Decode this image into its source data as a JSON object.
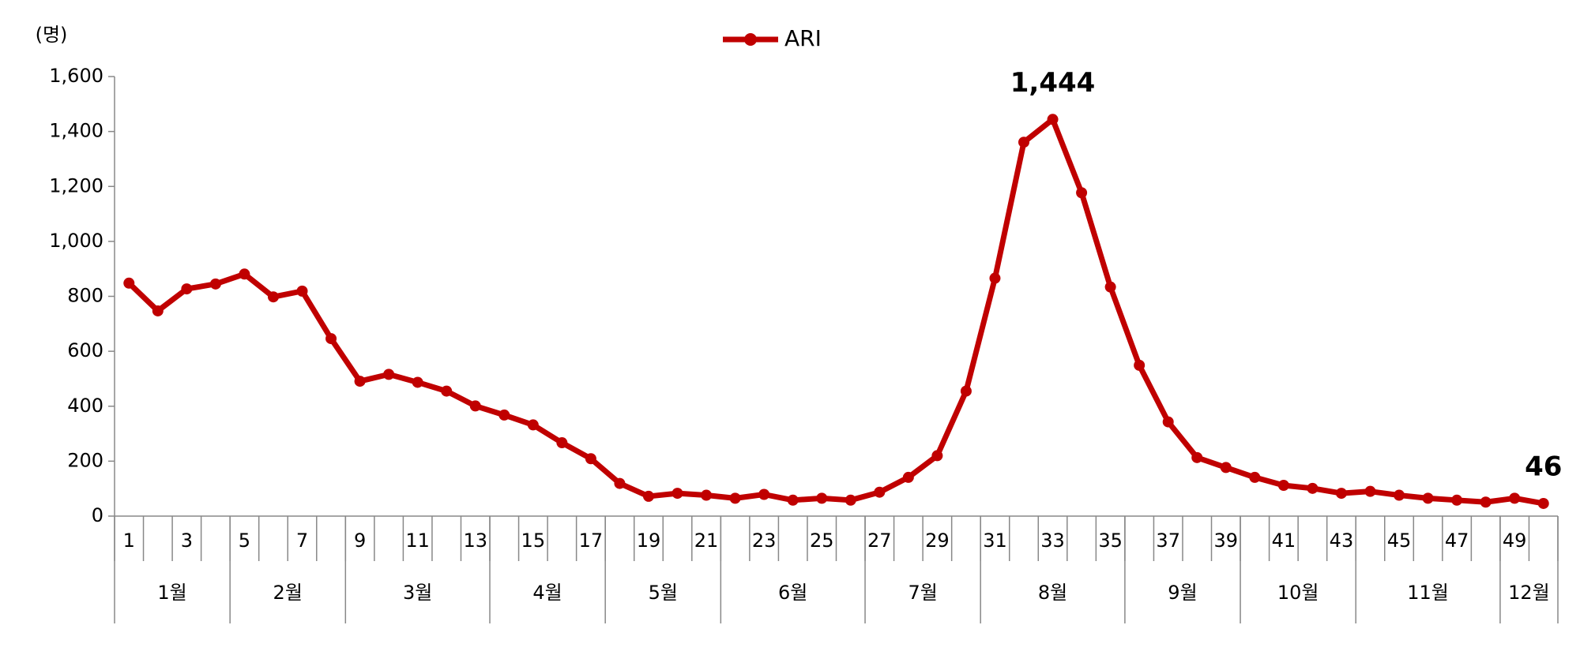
{
  "chart_data": {
    "type": "line",
    "y_label": "(명)",
    "categories": [
      1,
      null,
      3,
      null,
      5,
      null,
      7,
      null,
      9,
      null,
      11,
      null,
      13,
      null,
      15,
      null,
      17,
      null,
      19,
      null,
      21,
      null,
      23,
      null,
      25,
      null,
      27,
      null,
      29,
      null,
      31,
      null,
      33,
      null,
      35,
      null,
      37,
      null,
      39,
      null,
      41,
      null,
      43,
      null,
      45,
      null,
      47,
      null,
      49,
      null
    ],
    "month_groups": [
      {
        "label": "1월",
        "span": 4
      },
      {
        "label": "2월",
        "span": 4
      },
      {
        "label": "3월",
        "span": 5
      },
      {
        "label": "4월",
        "span": 4
      },
      {
        "label": "5월",
        "span": 4
      },
      {
        "label": "6월",
        "span": 5
      },
      {
        "label": "7월",
        "span": 4
      },
      {
        "label": "8월",
        "span": 5
      },
      {
        "label": "9월",
        "span": 4
      },
      {
        "label": "10월",
        "span": 4
      },
      {
        "label": "11월",
        "span": 5
      },
      {
        "label": "12월",
        "span": 2
      }
    ],
    "series": [
      {
        "name": "ARI",
        "color": "#c00000",
        "values": [
          848,
          747,
          827,
          845,
          881,
          798,
          819,
          646,
          491,
          516,
          487,
          455,
          401,
          368,
          332,
          267,
          209,
          119,
          72,
          83,
          76,
          65,
          79,
          58,
          65,
          58,
          87,
          141,
          220,
          455,
          866,
          1361,
          1444,
          1177,
          834,
          549,
          343,
          213,
          177,
          141,
          112,
          101,
          83,
          90,
          76,
          65,
          58,
          51,
          65,
          46
        ],
        "value_labels": [
          null,
          null,
          null,
          null,
          null,
          null,
          null,
          null,
          null,
          null,
          null,
          null,
          null,
          null,
          null,
          null,
          null,
          null,
          null,
          null,
          null,
          null,
          null,
          null,
          null,
          null,
          null,
          null,
          null,
          null,
          null,
          null,
          "1,444",
          null,
          null,
          null,
          null,
          null,
          null,
          null,
          null,
          null,
          null,
          null,
          null,
          null,
          null,
          null,
          null,
          "46"
        ]
      }
    ],
    "ylim": [
      0,
      1600
    ],
    "yticks": [
      0,
      200,
      400,
      600,
      800,
      {
        "value": 1000,
        "label": "1,000"
      },
      {
        "value": 1200,
        "label": "1,200"
      },
      {
        "value": 1400,
        "label": "1,400"
      },
      {
        "value": 1600,
        "label": "1,600"
      }
    ],
    "legend": "top",
    "grid": false
  }
}
